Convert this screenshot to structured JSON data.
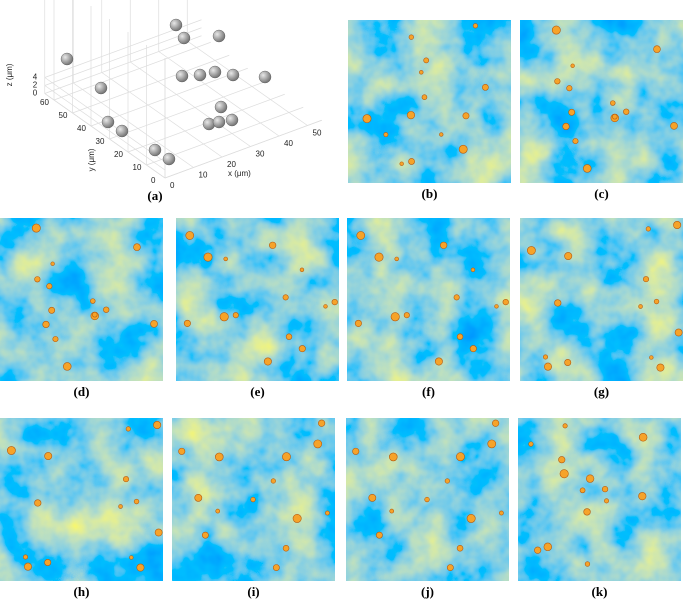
{
  "figure": {
    "plot3d": {
      "xlabel": "x (μm)",
      "ylabel": "y (μm)",
      "zlabel": "z (μm)",
      "xticks": [
        0,
        10,
        20,
        30,
        40,
        50
      ],
      "yticks": [
        0,
        10,
        20,
        30,
        40,
        50,
        60
      ],
      "zticks": [
        0,
        2,
        4
      ]
    },
    "panels": [
      "(a)",
      "(b)",
      "(c)",
      "(d)",
      "(e)",
      "(f)",
      "(g)",
      "(h)",
      "(i)",
      "(j)",
      "(k)"
    ]
  }
}
